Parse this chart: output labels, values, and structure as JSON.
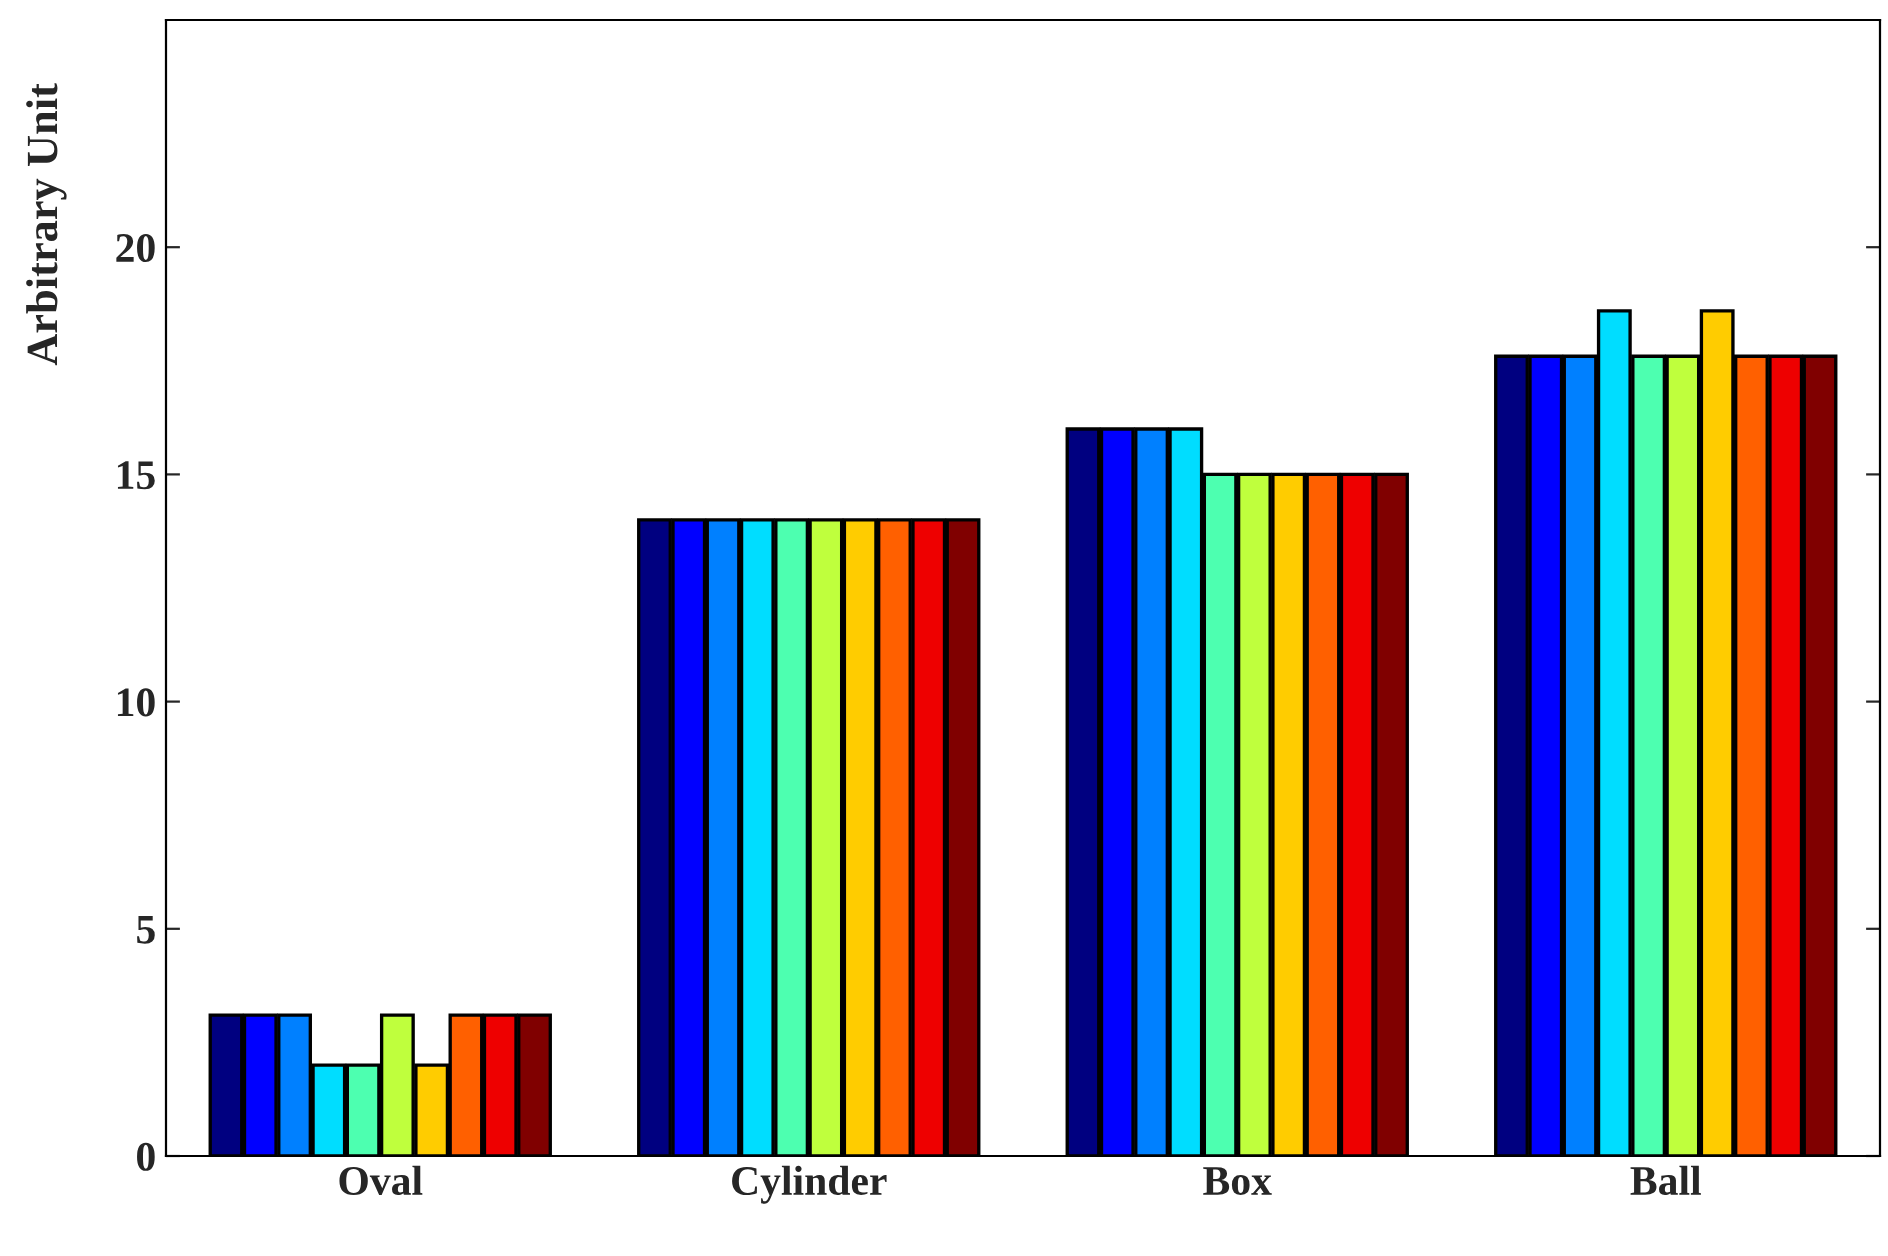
{
  "chart_data": {
    "type": "bar",
    "ylabel": "Arbitrary Unit",
    "categories": [
      "Oval",
      "Cylinder",
      "Box",
      "Ball"
    ],
    "series": [
      {
        "color": "#000080",
        "values": [
          3.1,
          14,
          16,
          17.6
        ]
      },
      {
        "color": "#0000ff",
        "values": [
          3.1,
          14,
          16,
          17.6
        ]
      },
      {
        "color": "#0080ff",
        "values": [
          3.1,
          14,
          16,
          17.6
        ]
      },
      {
        "color": "#00ddff",
        "values": [
          2,
          14,
          16,
          18.6
        ]
      },
      {
        "color": "#4dffb0",
        "values": [
          2,
          14,
          15,
          17.6
        ]
      },
      {
        "color": "#bfff3d",
        "values": [
          3.1,
          14,
          15,
          17.6
        ]
      },
      {
        "color": "#ffcc00",
        "values": [
          2,
          14,
          15,
          18.6
        ]
      },
      {
        "color": "#ff6000",
        "values": [
          3.1,
          14,
          15,
          17.6
        ]
      },
      {
        "color": "#ee0000",
        "values": [
          3.1,
          14,
          15,
          17.6
        ]
      },
      {
        "color": "#800000",
        "values": [
          3.1,
          14,
          15,
          17.6
        ]
      }
    ],
    "ylim": [
      0,
      25
    ],
    "yticks": [
      0,
      5,
      10,
      15,
      20
    ],
    "grid": false
  }
}
